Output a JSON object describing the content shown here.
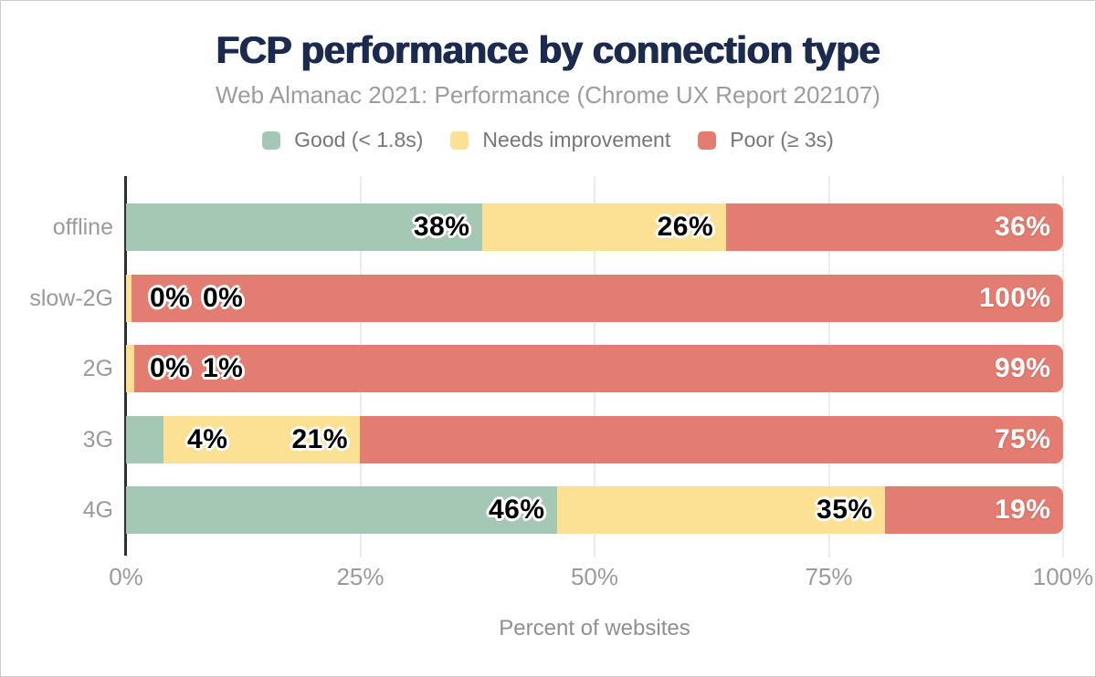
{
  "header": {
    "title": "FCP performance by connection type",
    "subtitle": "Web Almanac 2021: Performance (Chrome UX Report 202107)"
  },
  "legend": [
    {
      "label": "Good (< 1.8s)",
      "color": "#a5c8b5",
      "icon": "good-swatch"
    },
    {
      "label": "Needs improvement",
      "color": "#fce194",
      "icon": "needs-improvement-swatch"
    },
    {
      "label": "Poor (≥ 3s)",
      "color": "#e47d71",
      "icon": "poor-swatch"
    }
  ],
  "colors": {
    "good": "#a5c8b5",
    "needs_improvement": "#fce194",
    "poor": "#e47d71",
    "title": "#1b2a4e",
    "axis_spine": "#2f2f2f",
    "gridline": "#ebebeb",
    "muted_text": "#9a9a9a"
  },
  "chart_data": {
    "type": "bar",
    "orientation": "horizontal",
    "stacked": true,
    "title": "FCP performance by connection type",
    "subtitle": "Web Almanac 2021: Performance (Chrome UX Report 202107)",
    "categories": [
      "offline",
      "slow-2G",
      "2G",
      "3G",
      "4G"
    ],
    "series": [
      {
        "name": "Good (< 1.8s)",
        "color": "#a5c8b5",
        "values": [
          38,
          0,
          0,
          4,
          46
        ]
      },
      {
        "name": "Needs improvement",
        "color": "#fce194",
        "values": [
          26,
          0,
          1,
          21,
          35
        ]
      },
      {
        "name": "Poor (≥ 3s)",
        "color": "#e47d71",
        "values": [
          36,
          100,
          99,
          75,
          19
        ]
      }
    ],
    "draw_values": [
      [
        38,
        26,
        36
      ],
      [
        0,
        0.6,
        99.4
      ],
      [
        0,
        0.9,
        99.1
      ],
      [
        4,
        21,
        75
      ],
      [
        46,
        35,
        19
      ]
    ],
    "value_labels": [
      [
        "38%",
        "26%",
        "36%"
      ],
      [
        "0%",
        "0%",
        "100%"
      ],
      [
        "0%",
        "1%",
        "99%"
      ],
      [
        "4%",
        "21%",
        "75%"
      ],
      [
        "46%",
        "35%",
        "19%"
      ]
    ],
    "xticks": [
      "0%",
      "25%",
      "50%",
      "75%",
      "100%"
    ],
    "xlim": [
      0,
      100
    ],
    "xlabel": "Percent of websites",
    "ylabel": "",
    "grid": "vertical",
    "legend_position": "top"
  }
}
